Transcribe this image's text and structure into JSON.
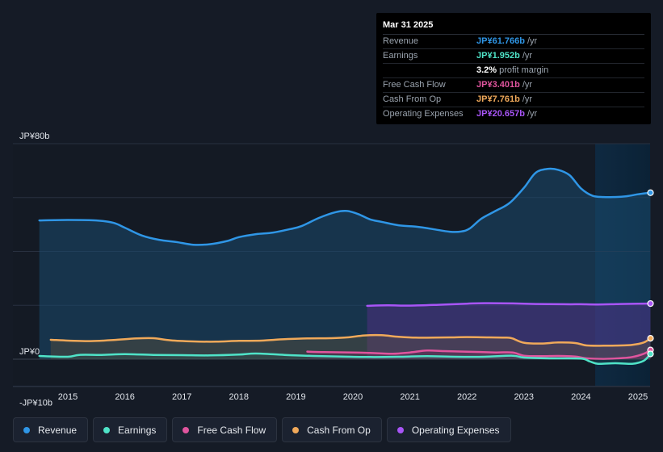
{
  "chart_data": {
    "type": "area",
    "title": "",
    "xlabel": "",
    "ylabel": "",
    "y_unit": "JP¥ billion",
    "ylim": [
      -10,
      80
    ],
    "y_tick_labels": [
      "JP¥80b",
      "JP¥0",
      "-JP¥10b"
    ],
    "y_ticks": [
      80,
      0,
      -10
    ],
    "x_ticks": [
      2015,
      2016,
      2017,
      2018,
      2019,
      2020,
      2021,
      2022,
      2023,
      2024,
      2025
    ],
    "x_tick_labels": [
      "2015",
      "2016",
      "2017",
      "2018",
      "2019",
      "2020",
      "2021",
      "2022",
      "2023",
      "2024",
      "2025"
    ],
    "highlight_start": 2024.25,
    "series": [
      {
        "name": "Revenue",
        "color": "#2f96e6",
        "x": [
          2014.5,
          2015.0,
          2015.5,
          2015.8,
          2016.0,
          2016.3,
          2016.6,
          2016.9,
          2017.2,
          2017.5,
          2017.8,
          2018.0,
          2018.3,
          2018.6,
          2018.9,
          2019.1,
          2019.4,
          2019.7,
          2019.9,
          2020.1,
          2020.3,
          2020.5,
          2020.8,
          2021.1,
          2021.4,
          2021.7,
          2021.9,
          2022.05,
          2022.25,
          2022.5,
          2022.75,
          2023.0,
          2023.2,
          2023.4,
          2023.6,
          2023.8,
          2024.0,
          2024.2,
          2024.4,
          2024.6,
          2024.8,
          2025.0,
          2025.22
        ],
        "values": [
          51.5,
          51.7,
          51.5,
          50.6,
          48.8,
          45.9,
          44.3,
          43.5,
          42.5,
          42.7,
          43.9,
          45.3,
          46.4,
          47.0,
          48.3,
          49.4,
          52.4,
          54.6,
          55.0,
          53.8,
          51.9,
          51.0,
          49.7,
          49.2,
          48.3,
          47.3,
          47.4,
          48.5,
          52.1,
          55.0,
          58.0,
          63.6,
          69.1,
          70.6,
          70.3,
          68.3,
          63.4,
          60.7,
          60.2,
          60.2,
          60.5,
          61.2,
          61.8
        ]
      },
      {
        "name": "Earnings",
        "color": "#4fe3c8",
        "x": [
          2014.5,
          2015.0,
          2015.2,
          2015.6,
          2016.0,
          2016.5,
          2017.0,
          2017.5,
          2018.0,
          2018.3,
          2018.8,
          2019.3,
          2019.8,
          2020.3,
          2020.8,
          2021.3,
          2021.8,
          2022.3,
          2022.8,
          2023.0,
          2023.5,
          2024.0,
          2024.15,
          2024.3,
          2024.6,
          2024.9,
          2025.1,
          2025.22
        ],
        "values": [
          1.2,
          0.9,
          1.6,
          1.6,
          1.9,
          1.6,
          1.5,
          1.4,
          1.7,
          2.1,
          1.6,
          1.2,
          1.0,
          0.8,
          0.9,
          1.1,
          0.9,
          0.9,
          1.3,
          0.6,
          0.3,
          0.2,
          -0.8,
          -1.7,
          -1.5,
          -1.7,
          -0.6,
          1.95
        ]
      },
      {
        "name": "Free Cash Flow",
        "color": "#e0559e",
        "x": [
          2019.2,
          2019.5,
          2020.0,
          2020.3,
          2020.7,
          2021.0,
          2021.3,
          2021.6,
          2022.0,
          2022.5,
          2022.8,
          2023.0,
          2023.3,
          2023.6,
          2023.9,
          2024.1,
          2024.4,
          2024.7,
          2024.9,
          2025.1,
          2025.22
        ],
        "values": [
          2.8,
          2.6,
          2.5,
          2.3,
          2.0,
          2.5,
          3.2,
          3.0,
          2.8,
          2.5,
          2.5,
          1.3,
          1.1,
          1.2,
          1.0,
          0.3,
          0.1,
          0.4,
          0.8,
          2.0,
          3.4
        ]
      },
      {
        "name": "Cash From Op",
        "color": "#f0a95a",
        "x": [
          2014.7,
          2015.0,
          2015.4,
          2015.8,
          2016.2,
          2016.5,
          2016.8,
          2017.2,
          2017.6,
          2018.0,
          2018.4,
          2018.8,
          2019.2,
          2019.6,
          2019.9,
          2020.2,
          2020.5,
          2020.8,
          2021.1,
          2021.4,
          2021.7,
          2022.0,
          2022.4,
          2022.7,
          2022.8,
          2023.0,
          2023.3,
          2023.6,
          2023.9,
          2024.1,
          2024.4,
          2024.7,
          2024.9,
          2025.1,
          2025.22
        ],
        "values": [
          7.2,
          6.9,
          6.7,
          7.1,
          7.7,
          7.8,
          7.0,
          6.6,
          6.5,
          6.8,
          6.9,
          7.4,
          7.7,
          7.8,
          8.1,
          8.8,
          8.9,
          8.3,
          8.0,
          8.0,
          8.1,
          8.2,
          8.1,
          8.0,
          7.7,
          6.1,
          5.8,
          6.2,
          6.0,
          5.1,
          5.0,
          5.1,
          5.3,
          6.2,
          7.76
        ]
      },
      {
        "name": "Operating Expenses",
        "color": "#a855f7",
        "x": [
          2020.25,
          2020.6,
          2021.0,
          2021.5,
          2022.0,
          2022.3,
          2022.8,
          2023.2,
          2023.7,
          2024.0,
          2024.3,
          2024.7,
          2025.0,
          2025.22
        ],
        "values": [
          19.8,
          20.0,
          19.9,
          20.2,
          20.6,
          20.8,
          20.7,
          20.5,
          20.4,
          20.4,
          20.3,
          20.5,
          20.6,
          20.66
        ]
      }
    ]
  },
  "tooltip": {
    "date": "Mar 31 2025",
    "rows": [
      {
        "label": "Revenue",
        "value": "JP¥61.766b",
        "unit": "/yr",
        "color": "#2f96e6"
      },
      {
        "label": "Earnings",
        "value": "JP¥1.952b",
        "unit": "/yr",
        "color": "#4fe3c8"
      },
      {
        "label": "",
        "value": "3.2%",
        "unit": "profit margin",
        "color": "#ffffff"
      },
      {
        "label": "Free Cash Flow",
        "value": "JP¥3.401b",
        "unit": "/yr",
        "color": "#e0559e"
      },
      {
        "label": "Cash From Op",
        "value": "JP¥7.761b",
        "unit": "/yr",
        "color": "#f0a95a"
      },
      {
        "label": "Operating Expenses",
        "value": "JP¥20.657b",
        "unit": "/yr",
        "color": "#a855f7"
      }
    ]
  },
  "legend": [
    {
      "label": "Revenue",
      "color": "#2f96e6"
    },
    {
      "label": "Earnings",
      "color": "#4fe3c8"
    },
    {
      "label": "Free Cash Flow",
      "color": "#e0559e"
    },
    {
      "label": "Cash From Op",
      "color": "#f0a95a"
    },
    {
      "label": "Operating Expenses",
      "color": "#a855f7"
    }
  ]
}
